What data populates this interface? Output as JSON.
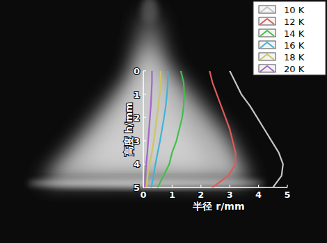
{
  "chart_data": {
    "type": "line",
    "x_label": "半径 r/mm",
    "y_label": "高度 h/mm",
    "y": [
      0,
      0.5,
      1,
      1.5,
      2,
      2.5,
      3,
      3.5,
      4,
      4.5,
      5
    ],
    "xlim": [
      0,
      5
    ],
    "xticks": [
      0,
      1,
      2,
      3,
      4,
      5
    ],
    "ylim": [
      5,
      0
    ],
    "yticks": [
      0,
      1,
      2,
      3,
      4,
      5
    ],
    "legend": "top-right",
    "series": [
      {
        "name": "10 K",
        "color": "#c4c4c4",
        "values": [
          3.0,
          3.2,
          3.4,
          3.7,
          3.95,
          4.2,
          4.45,
          4.7,
          4.85,
          4.8,
          4.5
        ]
      },
      {
        "name": "12 K",
        "color": "#e05a5a",
        "values": [
          2.3,
          2.4,
          2.55,
          2.7,
          2.85,
          3.0,
          3.1,
          3.2,
          3.2,
          2.95,
          2.4
        ]
      },
      {
        "name": "14 K",
        "color": "#3fc04a",
        "values": [
          1.3,
          1.4,
          1.42,
          1.4,
          1.35,
          1.25,
          1.15,
          1.0,
          0.9,
          0.7,
          0.5
        ]
      },
      {
        "name": "16 K",
        "color": "#3fb4d4",
        "values": [
          0.85,
          0.85,
          0.82,
          0.78,
          0.72,
          0.65,
          0.58,
          0.5,
          0.42,
          0.35,
          0.28
        ]
      },
      {
        "name": "18 K",
        "color": "#cdc468",
        "values": [
          0.6,
          0.6,
          0.57,
          0.52,
          0.47,
          0.42,
          0.36,
          0.3,
          0.22,
          0.15,
          0.1
        ]
      },
      {
        "name": "20 K",
        "color": "#a566c8",
        "values": [
          0.3,
          0.3,
          0.28,
          0.26,
          0.23,
          0.2,
          0.17,
          0.14,
          0.1,
          0.07,
          0.05
        ]
      }
    ]
  }
}
